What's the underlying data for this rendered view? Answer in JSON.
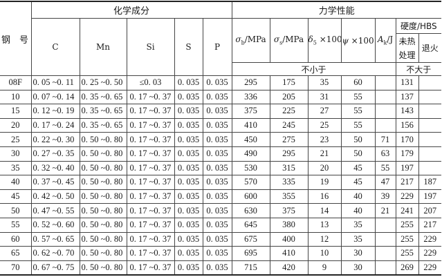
{
  "header": {
    "steel_no": "钢　号",
    "chem": "化学成分",
    "mech": "力学性能",
    "chem_cols": [
      "C",
      "Mn",
      "Si",
      "S",
      "P"
    ],
    "sigma_b": {
      "sym": "σ",
      "sub": "b",
      "unit": "/MPa"
    },
    "sigma_s": {
      "sym": "σ",
      "sub": "s",
      "unit": "/MPa"
    },
    "delta": {
      "sym": "δ",
      "sub": "5",
      "unit": " ×100"
    },
    "psi": {
      "sym": "ψ",
      "unit": " ×100"
    },
    "ak": {
      "sym": "A",
      "sub": "k",
      "unit": "/J"
    },
    "hardness": "硬度/HBS",
    "untreated": "未热处理",
    "annealed": "退火",
    "not_less": "不小于",
    "not_more": "不大于"
  },
  "rows": [
    [
      "08F",
      "0. 05 ~0. 11",
      "0. 25 ~0. 50",
      "≤0. 03",
      "0. 035",
      "0. 035",
      "295",
      "175",
      "35",
      "60",
      "",
      "131",
      ""
    ],
    [
      "10",
      "0. 07 ~0. 14",
      "0. 35 ~0. 65",
      "0. 17 ~0. 37",
      "0. 035",
      "0. 035",
      "336",
      "205",
      "31",
      "55",
      "",
      "137",
      ""
    ],
    [
      "15",
      "0. 12 ~0. 19",
      "0. 35 ~0. 65",
      "0. 17 ~0. 37",
      "0. 035",
      "0. 035",
      "375",
      "225",
      "27",
      "55",
      "",
      "143",
      ""
    ],
    [
      "20",
      "0. 17 ~0. 24",
      "0. 35 ~0. 65",
      "0. 17 ~0. 37",
      "0. 035",
      "0. 035",
      "410",
      "245",
      "25",
      "55",
      "",
      "156",
      ""
    ],
    [
      "25",
      "0. 22 ~0. 30",
      "0. 50 ~0. 80",
      "0. 17 ~0. 37",
      "0. 035",
      "0. 035",
      "450",
      "275",
      "23",
      "50",
      "71",
      "170",
      ""
    ],
    [
      "30",
      "0. 27 ~0. 35",
      "0. 50 ~0. 80",
      "0. 17 ~0. 37",
      "0. 035",
      "0. 035",
      "490",
      "295",
      "21",
      "50",
      "63",
      "179",
      ""
    ],
    [
      "35",
      "0. 32 ~0. 40",
      "0. 50 ~0. 80",
      "0. 17 ~0. 37",
      "0. 035",
      "0. 035",
      "530",
      "315",
      "20",
      "45",
      "55",
      "197",
      ""
    ],
    [
      "40",
      "0. 37 ~0. 45",
      "0. 50 ~0. 80",
      "0. 17 ~0. 37",
      "0. 035",
      "0. 035",
      "570",
      "335",
      "19",
      "45",
      "47",
      "217",
      "187"
    ],
    [
      "45",
      "0. 42 ~0. 50",
      "0. 50 ~0. 80",
      "0. 17 ~0. 37",
      "0. 035",
      "0. 035",
      "600",
      "355",
      "16",
      "40",
      "39",
      "229",
      "197"
    ],
    [
      "50",
      "0. 47 ~0. 55",
      "0. 50 ~0. 80",
      "0. 17 ~0. 37",
      "0. 035",
      "0. 035",
      "630",
      "375",
      "14",
      "40",
      "21",
      "241",
      "207"
    ],
    [
      "55",
      "0. 52 ~0. 60",
      "0. 50 ~0. 80",
      "0. 17 ~0. 37",
      "0. 035",
      "0. 035",
      "645",
      "380",
      "13",
      "35",
      "",
      "255",
      "217"
    ],
    [
      "60",
      "0. 57 ~0. 65",
      "0. 50 ~0. 80",
      "0. 17 ~0. 37",
      "0. 035",
      "0. 035",
      "675",
      "400",
      "12",
      "35",
      "",
      "255",
      "229"
    ],
    [
      "65",
      "0. 62 ~0. 70",
      "0. 50 ~0. 80",
      "0. 17 ~0. 37",
      "0. 035",
      "0. 035",
      "695",
      "410",
      "10",
      "30",
      "",
      "255",
      "229"
    ],
    [
      "70",
      "0. 67 ~0. 75",
      "0. 50 ~0. 80",
      "0. 17 ~0. 37",
      "0. 035",
      "0. 035",
      "715",
      "420",
      "9",
      "30",
      "",
      "269",
      "229"
    ]
  ]
}
